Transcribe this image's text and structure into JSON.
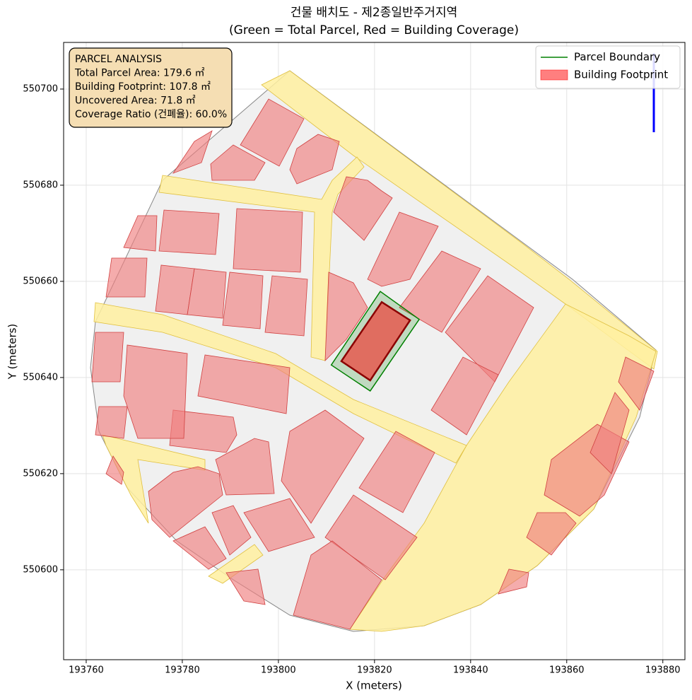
{
  "chart_data": {
    "type": "map",
    "title": "건물 배치도 - 제2종일반주거지역",
    "subtitle": "(Green = Total Parcel, Red = Building Coverage)",
    "xlabel": "X (meters)",
    "ylabel": "Y (meters)",
    "xlim": [
      193755.3,
      193884.6
    ],
    "ylim": [
      550581.3,
      550709.7
    ],
    "xticks": [
      193760,
      193780,
      193800,
      193820,
      193840,
      193860,
      193880
    ],
    "yticks": [
      550600,
      550620,
      550640,
      550660,
      550680,
      550700
    ],
    "grid": true,
    "legend": "upper right",
    "series": [
      {
        "name": "Parcel Boundary",
        "color": "#008000",
        "x": [
          193811.0,
          193821.2,
          193829.3,
          193819.1
        ],
        "y": [
          550642.6,
          550657.9,
          550652.1,
          550637.2
        ]
      },
      {
        "name": "Building Footprint",
        "color": "#ff0000",
        "x": [
          193813.1,
          193821.5,
          193827.4,
          193819.1
        ],
        "y": [
          550643.4,
          550655.7,
          550651.9,
          550639.4
        ]
      }
    ],
    "annotation": [
      "PARCEL ANALYSIS",
      "Total Parcel Area: 179.6 ㎡",
      "Building Footprint: 107.8 ㎡",
      "Uncovered Area: 71.8 ㎡",
      "Coverage Ratio (건폐율): 60.0%"
    ]
  }
}
